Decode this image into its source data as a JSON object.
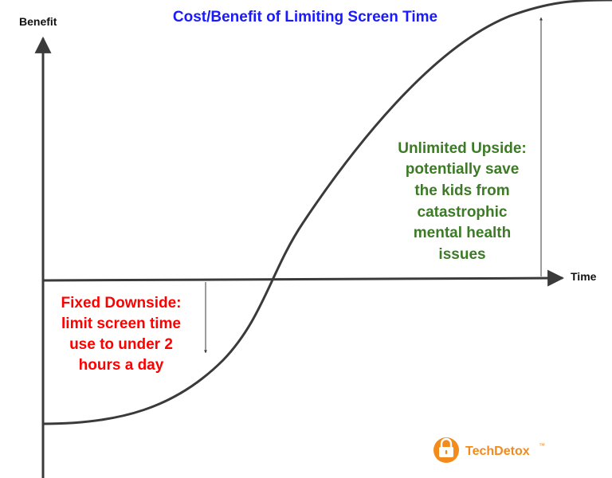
{
  "title": "Cost/Benefit of Limiting Screen Time",
  "y_axis_label": "Benefit",
  "x_axis_label": "Time",
  "downside": {
    "lines": [
      "Fixed Downside:",
      "limit screen time",
      "use to under 2",
      "hours a day"
    ]
  },
  "upside": {
    "lines": [
      "Unlimited Upside:",
      "potentially save",
      "the kids from",
      "catastrophic",
      "mental health",
      "issues"
    ]
  },
  "brand": {
    "name": "TechDetox",
    "mark": "™"
  },
  "colors": {
    "title": "#1a1aff",
    "downside": "#ff0000",
    "upside": "#3d7a27",
    "line": "#3a3a3a",
    "logo": "#f28a1c"
  }
}
